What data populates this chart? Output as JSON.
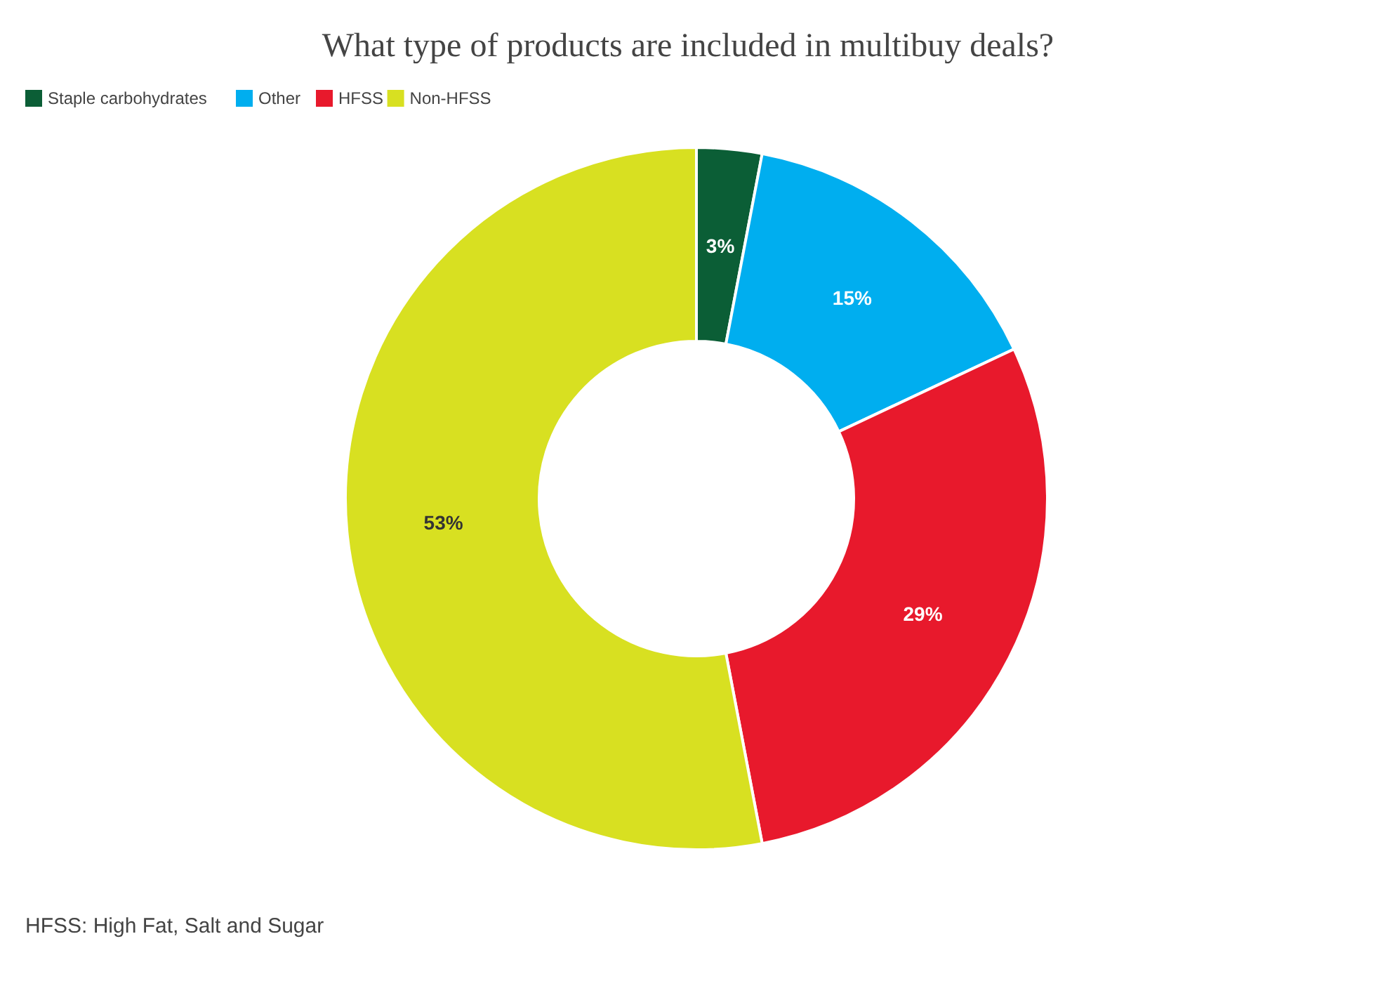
{
  "chart_data": {
    "type": "donut",
    "title": "What type of products are included in multibuy deals?",
    "categories": [
      "Staple carbohydrates",
      "Other",
      "HFSS",
      "Non-HFSS"
    ],
    "values": [
      3,
      15,
      29,
      53
    ],
    "colors": [
      "#0b5e36",
      "#00aeef",
      "#e8192c",
      "#d8e021"
    ],
    "value_labels": [
      "3%",
      "15%",
      "29%",
      "53%"
    ],
    "legend": "top left",
    "annotations": [
      "HFSS: High Fat, Salt and Sugar"
    ]
  }
}
